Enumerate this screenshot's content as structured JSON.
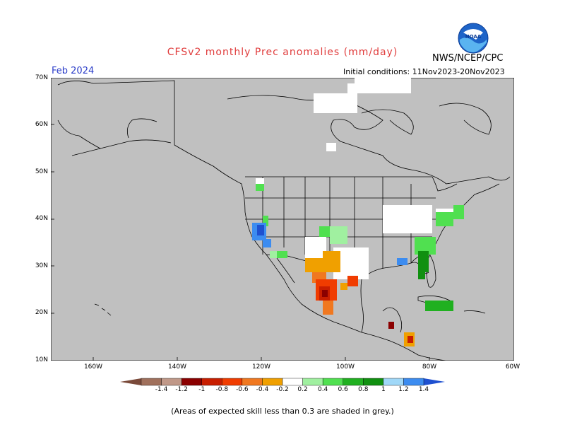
{
  "title": "CFSv2 monthly Prec anomalies (mm/day)",
  "valid_month": "Feb 2024",
  "initial_conditions": "Initial conditions: 11Nov2023-20Nov2023",
  "agency": "NWS/NCEP/CPC",
  "logo_text": "NOAA",
  "lat_labels": [
    "70N",
    "60N",
    "50N",
    "40N",
    "30N",
    "20N",
    "10N"
  ],
  "lon_labels": [
    "160W",
    "140W",
    "120W",
    "100W",
    "80W",
    "60W"
  ],
  "colorbar": {
    "labels": [
      "-1.4",
      "-1.2",
      "-1",
      "-0.8",
      "-0.6",
      "-0.4",
      "-0.2",
      "0.2",
      "0.4",
      "0.6",
      "0.8",
      "1",
      "1.2",
      "1.4"
    ],
    "colors": [
      "#7a4a3a",
      "#a0705c",
      "#c09888",
      "#8b0000",
      "#c81e00",
      "#f03c00",
      "#f07820",
      "#f0a000",
      "#ffffff",
      "#a0f0a0",
      "#50e050",
      "#20b020",
      "#109010",
      "#a0d8f8",
      "#3c8cf0",
      "#1e50d0"
    ]
  },
  "note": "(Areas of expected skill less than 0.3 are shaded in grey.)"
}
